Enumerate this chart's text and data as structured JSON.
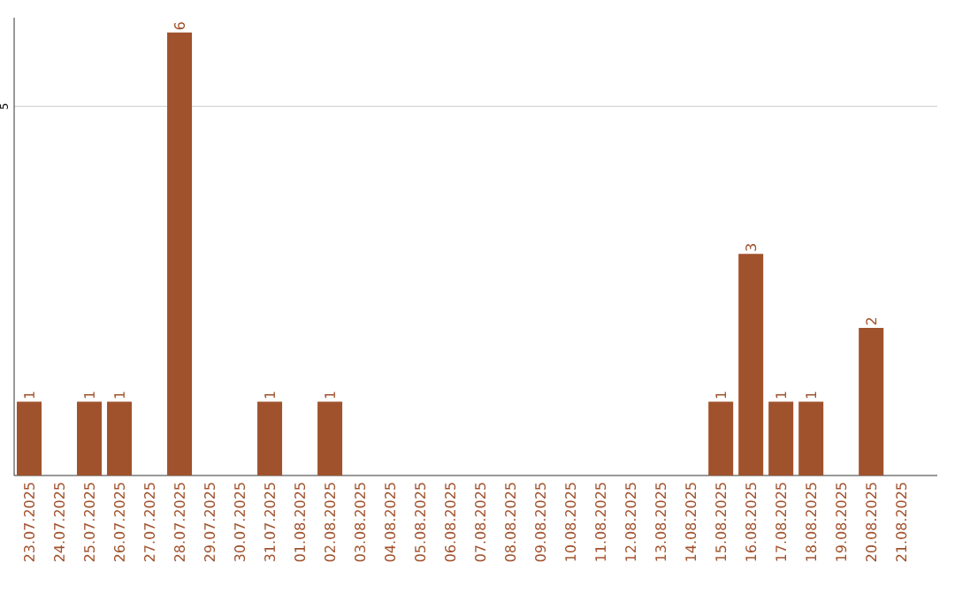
{
  "chart_data": {
    "type": "bar",
    "categories": [
      "23.07.2025",
      "24.07.2025",
      "25.07.2025",
      "26.07.2025",
      "27.07.2025",
      "28.07.2025",
      "29.07.2025",
      "30.07.2025",
      "31.07.2025",
      "01.08.2025",
      "02.08.2025",
      "03.08.2025",
      "04.08.2025",
      "05.08.2025",
      "06.08.2025",
      "07.08.2025",
      "08.08.2025",
      "09.08.2025",
      "10.08.2025",
      "11.08.2025",
      "12.08.2025",
      "13.08.2025",
      "14.08.2025",
      "15.08.2025",
      "16.08.2025",
      "17.08.2025",
      "18.08.2025",
      "19.08.2025",
      "20.08.2025",
      "21.08.2025"
    ],
    "values": [
      1,
      0,
      1,
      1,
      0,
      6,
      0,
      0,
      1,
      0,
      1,
      0,
      0,
      0,
      0,
      0,
      0,
      0,
      0,
      0,
      0,
      0,
      0,
      1,
      3,
      1,
      1,
      0,
      2,
      0
    ],
    "value_labels": [
      "1",
      null,
      "1",
      "1",
      null,
      "6",
      null,
      null,
      "1",
      null,
      "1",
      null,
      null,
      null,
      null,
      null,
      null,
      null,
      null,
      null,
      null,
      null,
      null,
      "1",
      "3",
      "1",
      "1",
      null,
      "2",
      null
    ],
    "color": "#a0522d",
    "ylim": [
      0,
      6.2
    ],
    "yticks": [
      5
    ],
    "grid": "y"
  }
}
